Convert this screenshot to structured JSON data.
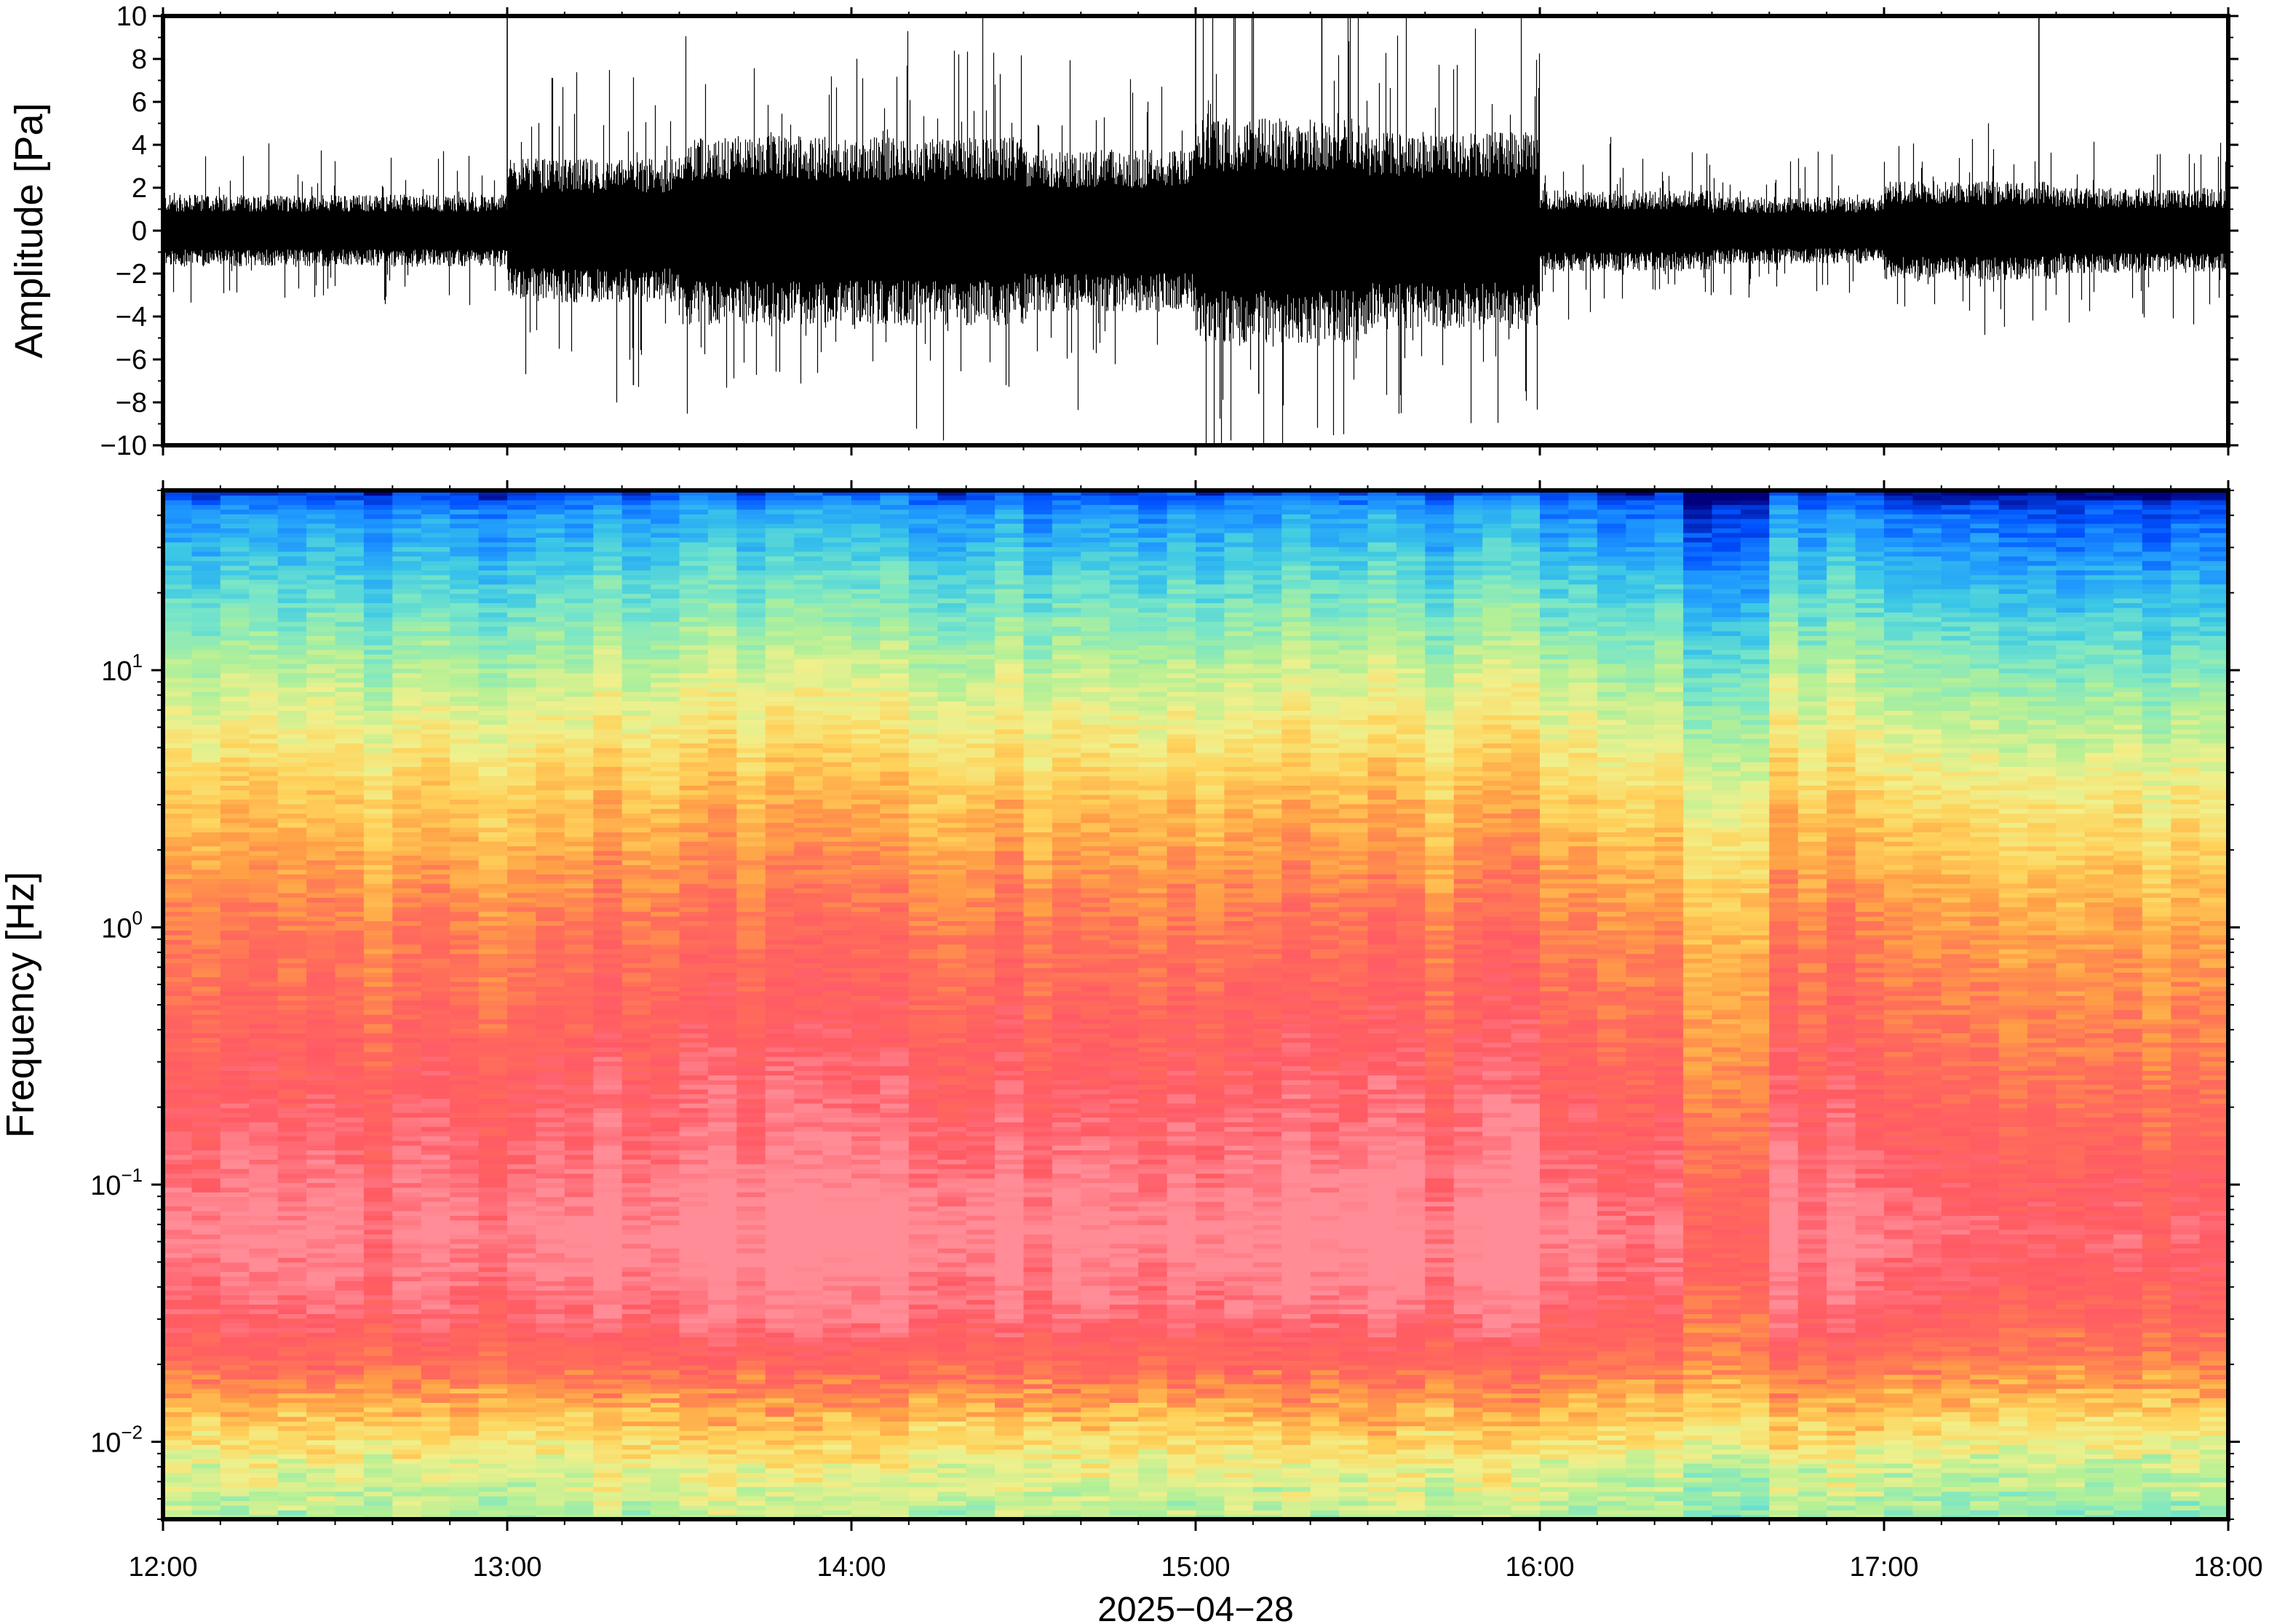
{
  "chart_data": [
    {
      "type": "line",
      "panel": "waveform",
      "ylabel": "Amplitude [Pa]",
      "ylim": [
        -10,
        10
      ],
      "yticks": [
        10,
        8,
        6,
        4,
        2,
        0,
        -2,
        -4,
        -6,
        -8,
        -10
      ],
      "ytick_labels": [
        "10",
        "8",
        "6",
        "4",
        "2",
        "0",
        "−2",
        "−4",
        "−6",
        "−8",
        "−10"
      ],
      "x_hours": [
        12,
        18
      ],
      "envelope_segments": [
        {
          "from": "12:00",
          "to": "13:00",
          "amp": 1.6
        },
        {
          "from": "13:00",
          "to": "13:30",
          "amp": 3.2
        },
        {
          "from": "13:30",
          "to": "14:30",
          "amp": 4.2
        },
        {
          "from": "14:30",
          "to": "15:00",
          "amp": 3.6
        },
        {
          "from": "15:00",
          "to": "15:30",
          "amp": 5.0
        },
        {
          "from": "15:30",
          "to": "16:00",
          "amp": 4.4
        },
        {
          "from": "16:00",
          "to": "16:30",
          "amp": 1.8
        },
        {
          "from": "16:30",
          "to": "17:00",
          "amp": 1.5
        },
        {
          "from": "17:00",
          "to": "17:30",
          "amp": 2.2
        },
        {
          "from": "17:30",
          "to": "18:00",
          "amp": 1.9
        }
      ],
      "peaks": [
        {
          "time": "13:00",
          "value": 10
        },
        {
          "time": "15:00",
          "value": 10
        },
        {
          "time": "15:22",
          "value": 10
        },
        {
          "time": "17:27",
          "value": 10
        },
        {
          "time": "15:11",
          "value": -7.6
        },
        {
          "time": "13:22",
          "value": -7.2
        }
      ]
    },
    {
      "type": "heatmap",
      "panel": "spectrogram",
      "ylabel": "Frequency [Hz]",
      "yscale": "log",
      "ylim": [
        0.005,
        50
      ],
      "yticks": [
        {
          "base": "10",
          "exp": "1"
        },
        {
          "base": "10",
          "exp": "0"
        },
        {
          "base": "10",
          "exp": "−1"
        },
        {
          "base": "10",
          "exp": "−2"
        }
      ],
      "colormap": [
        "#00007f",
        "#0050ff",
        "#1e96ff",
        "#3cc8e6",
        "#78e6c8",
        "#b4f096",
        "#f0f08c",
        "#ffd25a",
        "#ffa046",
        "#ff6e5a",
        "#ff5a64",
        "#ff8c96"
      ],
      "xlabel": "2025−04−28",
      "x_ticks": [
        "12:00",
        "13:00",
        "14:00",
        "15:00",
        "16:00",
        "17:00",
        "18:00"
      ]
    }
  ]
}
